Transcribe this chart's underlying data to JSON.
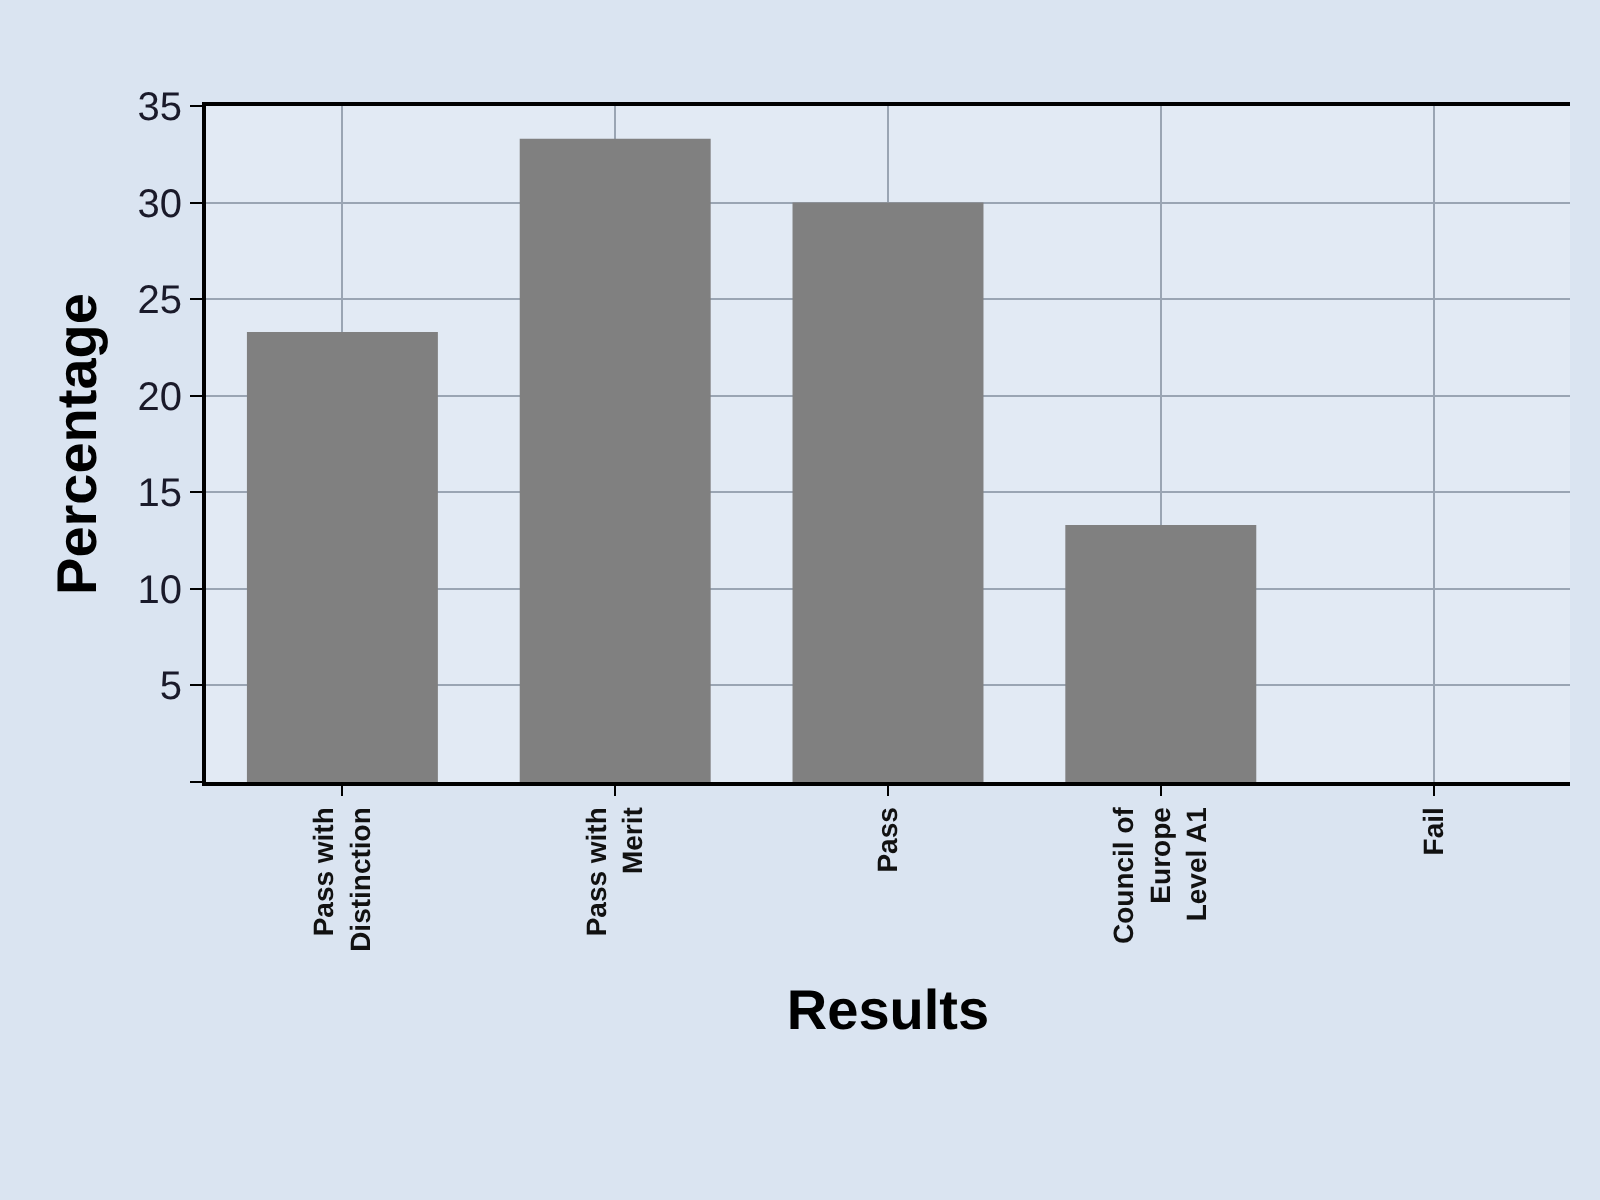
{
  "chart_data": {
    "type": "bar",
    "xlabel": "Results",
    "ylabel": "Percentage",
    "categories": [
      "Pass with Distinction",
      "Pass with Merit",
      "Pass",
      "Council of Europe Level A1",
      "Fail"
    ],
    "values": [
      23.3,
      33.3,
      30,
      13.3,
      0
    ],
    "color": "#808080",
    "ylim": [
      0,
      35
    ],
    "yticks": [
      {
        "value": 0,
        "label": null
      },
      5,
      10,
      15,
      20,
      25,
      30,
      35
    ],
    "grid": true
  }
}
